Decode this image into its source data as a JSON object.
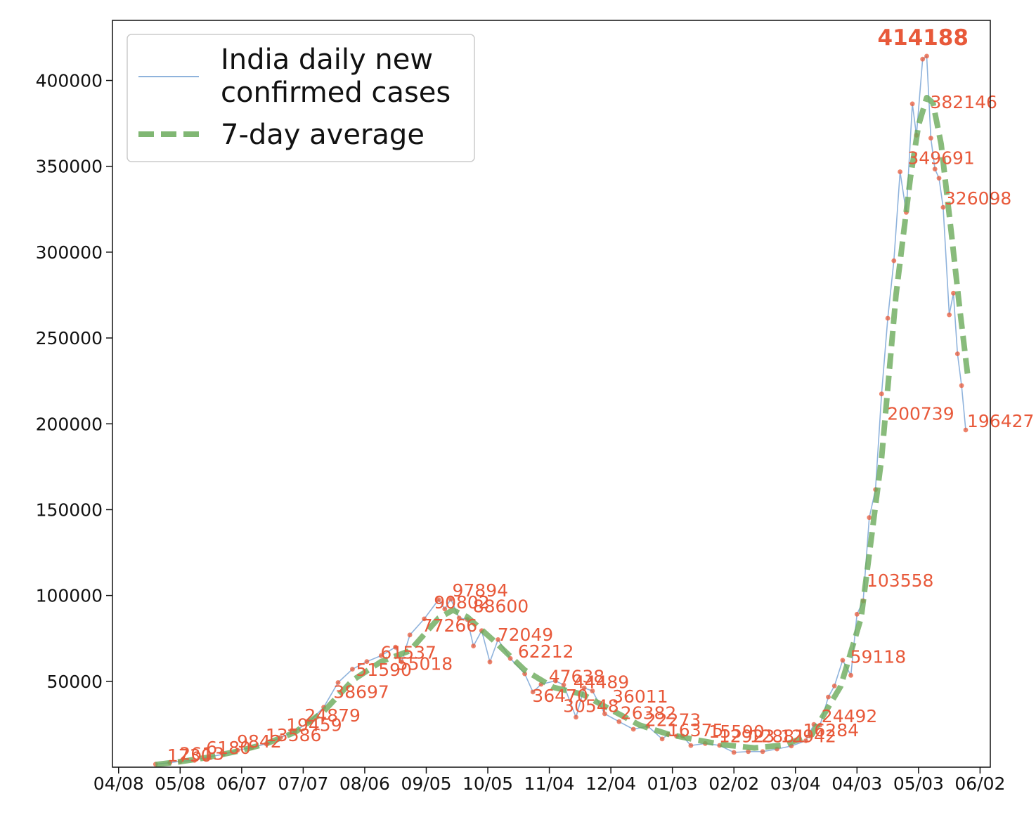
{
  "chart_data": {
    "type": "line",
    "title": "",
    "xlabel": "",
    "ylabel": "",
    "x_ticks": [
      "04/08",
      "05/08",
      "06/07",
      "07/07",
      "08/06",
      "09/05",
      "10/05",
      "11/04",
      "12/04",
      "01/03",
      "02/02",
      "03/04",
      "04/03",
      "05/03",
      "06/02"
    ],
    "y_ticks": [
      "50000",
      "100000",
      "150000",
      "200000",
      "250000",
      "300000",
      "350000",
      "400000"
    ],
    "x_range": [
      "2020-04-05",
      "2021-06-07"
    ],
    "ylim": [
      0,
      435000
    ],
    "grid": false,
    "legend_position": "top-left",
    "legend": [
      "India daily new\nconfirmed cases",
      "7-day average"
    ],
    "colors": {
      "daily_line": "#8fb3dc",
      "daily_markers": "#e8593a",
      "average_line": "#6aaa5a",
      "annotation": "#e8593a"
    },
    "series": [
      {
        "name": "India daily new\nconfirmed cases",
        "style": "solid",
        "points": [
          [
            "2020-04-26",
            1700
          ],
          [
            "2020-05-03",
            2600
          ],
          [
            "2020-05-08",
            3390
          ],
          [
            "2020-05-15",
            3970
          ],
          [
            "2020-05-22",
            6100
          ],
          [
            "2020-05-29",
            7460
          ],
          [
            "2020-06-05",
            9850
          ],
          [
            "2020-06-12",
            11400
          ],
          [
            "2020-06-19",
            13590
          ],
          [
            "2020-06-26",
            17300
          ],
          [
            "2020-07-03",
            20900
          ],
          [
            "2020-07-10",
            26500
          ],
          [
            "2020-07-17",
            34900
          ],
          [
            "2020-07-24",
            49300
          ],
          [
            "2020-07-31",
            57100
          ],
          [
            "2020-08-07",
            61500
          ],
          [
            "2020-08-14",
            65000
          ],
          [
            "2020-08-21",
            69900
          ],
          [
            "2020-08-24",
            61400
          ],
          [
            "2020-08-28",
            77000
          ],
          [
            "2020-09-04",
            86400
          ],
          [
            "2020-09-11",
            97600
          ],
          [
            "2020-09-14",
            92100
          ],
          [
            "2020-09-17",
            97894
          ],
          [
            "2020-09-21",
            86900
          ],
          [
            "2020-09-25",
            86000
          ],
          [
            "2020-09-28",
            70600
          ],
          [
            "2020-10-02",
            79500
          ],
          [
            "2020-10-06",
            61300
          ],
          [
            "2020-10-10",
            74300
          ],
          [
            "2020-10-16",
            63300
          ],
          [
            "2020-10-23",
            54400
          ],
          [
            "2020-10-27",
            43800
          ],
          [
            "2020-10-31",
            48300
          ],
          [
            "2020-11-07",
            50300
          ],
          [
            "2020-11-11",
            47900
          ],
          [
            "2020-11-17",
            29100
          ],
          [
            "2020-11-21",
            46200
          ],
          [
            "2020-11-25",
            44400
          ],
          [
            "2020-12-01",
            31100
          ],
          [
            "2020-12-08",
            26500
          ],
          [
            "2020-12-15",
            22100
          ],
          [
            "2020-12-22",
            23900
          ],
          [
            "2020-12-29",
            16400
          ],
          [
            "2021-01-01",
            19100
          ],
          [
            "2021-01-05",
            18100
          ],
          [
            "2021-01-08",
            18100
          ],
          [
            "2021-01-12",
            12600
          ],
          [
            "2021-01-19",
            13800
          ],
          [
            "2021-01-26",
            12700
          ],
          [
            "2021-02-02",
            8600
          ],
          [
            "2021-02-09",
            9100
          ],
          [
            "2021-02-16",
            9100
          ],
          [
            "2021-02-23",
            10600
          ],
          [
            "2021-03-02",
            12300
          ],
          [
            "2021-03-09",
            15400
          ],
          [
            "2021-03-13",
            24900
          ],
          [
            "2021-03-16",
            24492
          ],
          [
            "2021-03-20",
            40900
          ],
          [
            "2021-03-23",
            47300
          ],
          [
            "2021-03-27",
            62300
          ],
          [
            "2021-03-31",
            53500
          ],
          [
            "2021-04-03",
            89100
          ],
          [
            "2021-04-06",
            96900
          ],
          [
            "2021-04-09",
            145400
          ],
          [
            "2021-04-12",
            161700
          ],
          [
            "2021-04-15",
            217400
          ],
          [
            "2021-04-18",
            261500
          ],
          [
            "2021-04-21",
            295000
          ],
          [
            "2021-04-24",
            346800
          ],
          [
            "2021-04-27",
            323100
          ],
          [
            "2021-04-30",
            386400
          ],
          [
            "2021-05-02",
            368100
          ],
          [
            "2021-05-05",
            412400
          ],
          [
            "2021-05-07",
            414188
          ],
          [
            "2021-05-09",
            366400
          ],
          [
            "2021-05-11",
            348400
          ],
          [
            "2021-05-13",
            343100
          ],
          [
            "2021-05-15",
            326098
          ],
          [
            "2021-05-18",
            263500
          ],
          [
            "2021-05-20",
            276100
          ],
          [
            "2021-05-22",
            240800
          ],
          [
            "2021-05-24",
            222300
          ],
          [
            "2021-05-26",
            196427
          ]
        ]
      },
      {
        "name": "7-day average",
        "style": "dashed",
        "points": [
          [
            "2020-04-26",
            1500
          ],
          [
            "2020-05-08",
            3200
          ],
          [
            "2020-05-22",
            5800
          ],
          [
            "2020-06-05",
            9300
          ],
          [
            "2020-06-19",
            13700
          ],
          [
            "2020-07-03",
            20300
          ],
          [
            "2020-07-17",
            32500
          ],
          [
            "2020-07-31",
            50500
          ],
          [
            "2020-08-14",
            61500
          ],
          [
            "2020-08-28",
            67800
          ],
          [
            "2020-09-11",
            86800
          ],
          [
            "2020-09-18",
            91500
          ],
          [
            "2020-09-25",
            87500
          ],
          [
            "2020-10-09",
            72500
          ],
          [
            "2020-10-23",
            56500
          ],
          [
            "2020-11-06",
            46500
          ],
          [
            "2020-11-20",
            42500
          ],
          [
            "2020-12-04",
            33500
          ],
          [
            "2020-12-18",
            24500
          ],
          [
            "2021-01-01",
            19200
          ],
          [
            "2021-01-15",
            15800
          ],
          [
            "2021-01-29",
            12900
          ],
          [
            "2021-02-12",
            11200
          ],
          [
            "2021-02-26",
            12800
          ],
          [
            "2021-03-12",
            18900
          ],
          [
            "2021-03-26",
            47000
          ],
          [
            "2021-04-05",
            87000
          ],
          [
            "2021-04-15",
            180000
          ],
          [
            "2021-04-22",
            275000
          ],
          [
            "2021-04-29",
            343000
          ],
          [
            "2021-05-03",
            374000
          ],
          [
            "2021-05-07",
            390000
          ],
          [
            "2021-05-10",
            387000
          ],
          [
            "2021-05-14",
            363000
          ],
          [
            "2021-05-19",
            311000
          ],
          [
            "2021-05-23",
            268000
          ],
          [
            "2021-05-27",
            228000
          ]
        ]
      }
    ],
    "annotations": [
      {
        "date": "2020-05-01",
        "value": 1730,
        "text": "1730"
      },
      {
        "date": "2020-05-07",
        "value": 2613,
        "text": "2613"
      },
      {
        "date": "2020-05-20",
        "value": 6180,
        "text": "6180"
      },
      {
        "date": "2020-06-04",
        "value": 9842,
        "text": "9842"
      },
      {
        "date": "2020-06-18",
        "value": 13586,
        "text": "13586"
      },
      {
        "date": "2020-06-28",
        "value": 19459,
        "text": "19459"
      },
      {
        "date": "2020-07-07",
        "value": 24879,
        "text": "24879"
      },
      {
        "date": "2020-07-21",
        "value": 38697,
        "text": "38697"
      },
      {
        "date": "2020-08-01",
        "value": 51590,
        "text": "51590"
      },
      {
        "date": "2020-08-13",
        "value": 61537,
        "text": "61537"
      },
      {
        "date": "2020-08-21",
        "value": 55018,
        "text": "55018"
      },
      {
        "date": "2020-09-02",
        "value": 77266,
        "text": "77266"
      },
      {
        "date": "2020-09-08",
        "value": 90802,
        "text": "90802"
      },
      {
        "date": "2020-09-17",
        "value": 97894,
        "text": "97894"
      },
      {
        "date": "2020-09-27",
        "value": 88600,
        "text": "88600"
      },
      {
        "date": "2020-10-09",
        "value": 72049,
        "text": "72049"
      },
      {
        "date": "2020-10-19",
        "value": 62212,
        "text": "62212"
      },
      {
        "date": "2020-11-03",
        "value": 47638,
        "text": "47638"
      },
      {
        "date": "2020-11-15",
        "value": 44489,
        "text": "44489"
      },
      {
        "date": "2020-10-26",
        "value": 36470,
        "text": "36470"
      },
      {
        "date": "2020-11-10",
        "value": 30548,
        "text": "30548"
      },
      {
        "date": "2020-12-04",
        "value": 36011,
        "text": "36011"
      },
      {
        "date": "2020-12-08",
        "value": 26382,
        "text": "26382"
      },
      {
        "date": "2020-12-20",
        "value": 22273,
        "text": "22273"
      },
      {
        "date": "2020-12-31",
        "value": 16375,
        "text": "16375"
      },
      {
        "date": "2021-01-20",
        "value": 15590,
        "text": "15590"
      },
      {
        "date": "2021-01-25",
        "value": 12923,
        "text": "12923"
      },
      {
        "date": "2021-02-09",
        "value": 12881,
        "text": "12881"
      },
      {
        "date": "2021-02-24",
        "value": 12942,
        "text": "12942"
      },
      {
        "date": "2021-03-07",
        "value": 16284,
        "text": "16284"
      },
      {
        "date": "2021-03-16",
        "value": 24492,
        "text": "24492"
      },
      {
        "date": "2021-03-30",
        "value": 59118,
        "text": "59118"
      },
      {
        "date": "2021-04-07",
        "value": 103558,
        "text": "103558"
      },
      {
        "date": "2021-04-17",
        "value": 200739,
        "text": "200739"
      },
      {
        "date": "2021-04-27",
        "value": 349691,
        "text": "349691"
      },
      {
        "date": "2021-05-07",
        "value": 414188,
        "text": "414188",
        "bold": true
      },
      {
        "date": "2021-05-08",
        "value": 382146,
        "text": "382146"
      },
      {
        "date": "2021-05-15",
        "value": 326098,
        "text": "326098"
      },
      {
        "date": "2021-05-26",
        "value": 196427,
        "text": "196427"
      }
    ]
  }
}
